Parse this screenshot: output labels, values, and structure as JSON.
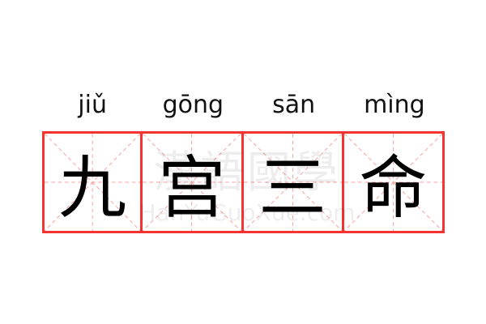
{
  "word": {
    "pinyin": [
      "jiǔ",
      "gōng",
      "sān",
      "mìng"
    ],
    "characters": [
      "九",
      "宫",
      "三",
      "命"
    ]
  },
  "watermark": {
    "logo_text": "漢語國學",
    "site_text": "HanYuGuoXue.com"
  },
  "colors": {
    "grid_border": "#f43333",
    "guide_lines": "#f7a0a0",
    "text": "#000000"
  }
}
